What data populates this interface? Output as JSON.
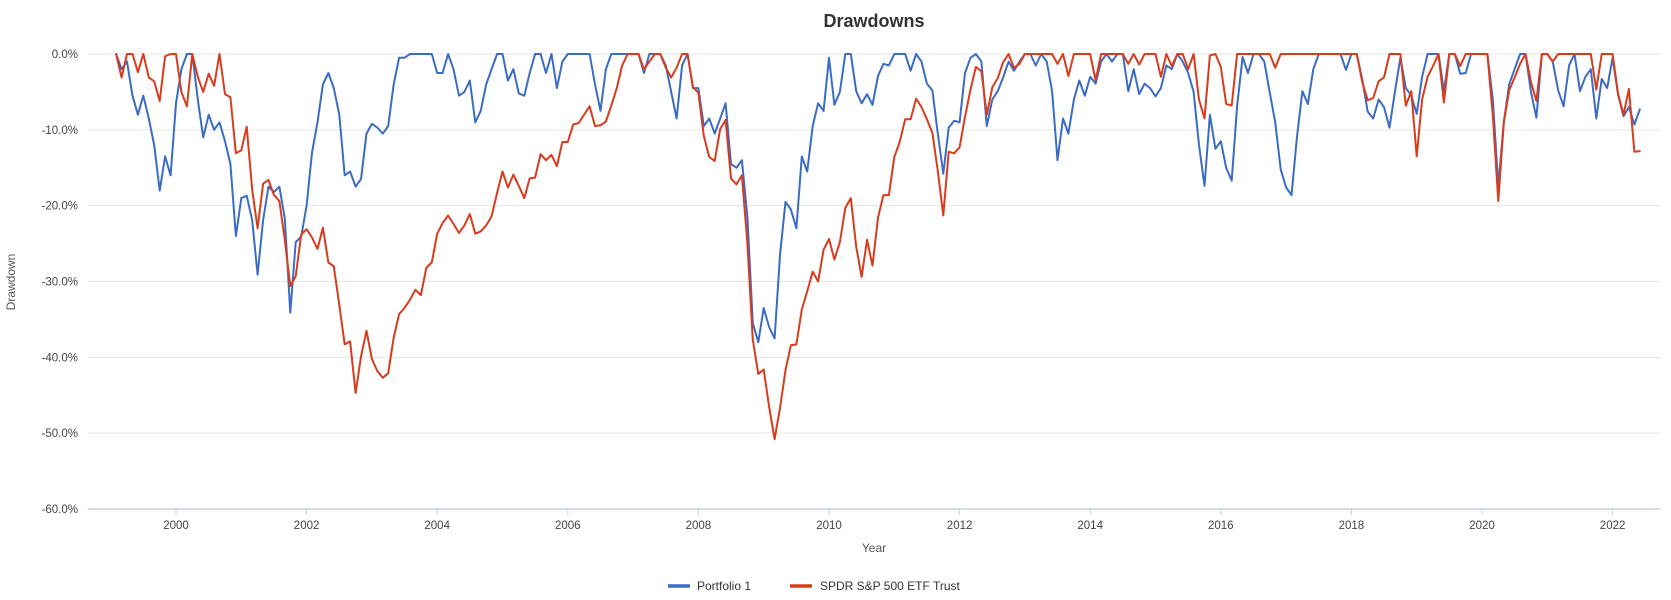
{
  "title": "Drawdowns",
  "y_axis": {
    "label": "Drawdown",
    "tick_labels": [
      "0.0%",
      "-10.0%",
      "-20.0%",
      "-30.0%",
      "-40.0%",
      "-50.0%",
      "-60.0%"
    ]
  },
  "x_axis": {
    "label": "Year",
    "tick_labels": [
      "2000",
      "2002",
      "2004",
      "2006",
      "2008",
      "2010",
      "2012",
      "2014",
      "2016",
      "2018",
      "2020",
      "2022"
    ]
  },
  "legend": [
    {
      "label": "Portfolio 1",
      "color": "#3b6cc4"
    },
    {
      "label": "SPDR S&P 500 ETF Trust",
      "color": "#d93b1d"
    }
  ],
  "colors": {
    "gridline": "#e6e6e6",
    "axis_line": "#c7d2e0",
    "background": "#ffffff"
  },
  "chart_data": {
    "type": "line",
    "title": "Drawdowns",
    "xlabel": "Year",
    "ylabel": "Drawdown",
    "ylim": [
      -60,
      0
    ],
    "grid": "horizontal",
    "legend_position": "bottom",
    "frequency": "monthly",
    "start_year": 1999,
    "start_month": 1,
    "xticks": [
      2000,
      2002,
      2004,
      2006,
      2008,
      2010,
      2012,
      2014,
      2016,
      2018,
      2020,
      2022
    ],
    "yticks_percent": [
      0,
      -10,
      -20,
      -30,
      -40,
      -50,
      -60
    ],
    "series": [
      {
        "name": "Portfolio 1",
        "color": "#3b6cc4",
        "values": [
          0,
          -2,
          -1,
          -5.5,
          -8,
          -5.5,
          -8.5,
          -12,
          -18,
          -13.5,
          -16,
          -6.5,
          -2,
          0,
          0,
          -6,
          -11,
          -8,
          -10,
          -9,
          -11.5,
          -14.5,
          -24,
          -19,
          -18.7,
          -21.9,
          -29.1,
          -21.9,
          -17.5,
          -18.2,
          -17.5,
          -21.7,
          -34.1,
          -24.8,
          -24.1,
          -20,
          -13,
          -9,
          -4,
          -2.5,
          -4.5,
          -8,
          -16,
          -15.5,
          -17.5,
          -16.5,
          -10.5,
          -9.2,
          -9.7,
          -10.5,
          -9.5,
          -4,
          -0.5,
          -0.5,
          0,
          0,
          0,
          0,
          0,
          -2.5,
          -2.5,
          0,
          -2,
          -5.5,
          -5,
          -3.5,
          -9,
          -7.5,
          -4,
          -2,
          0,
          0,
          -3.5,
          -2,
          -5.2,
          -5.5,
          -2.5,
          0,
          0,
          -2.5,
          0,
          -4.5,
          -1,
          0,
          0,
          0,
          0,
          0,
          -4,
          -7.5,
          -2,
          0,
          0,
          0,
          0,
          0,
          0,
          -2.5,
          0,
          0,
          0,
          -1.5,
          -5,
          -8.5,
          -1.5,
          0,
          -4.5,
          -4.5,
          -9.5,
          -8.5,
          -10.5,
          -8.5,
          -6.5,
          -14.5,
          -15,
          -14,
          -21.5,
          -35.5,
          -38,
          -33.5,
          -36,
          -37.5,
          -26.5,
          -19.5,
          -20.5,
          -23,
          -13.5,
          -15.5,
          -9.5,
          -6.5,
          -7.5,
          -0.5,
          -6.7,
          -5,
          0,
          0,
          -4.9,
          -6.5,
          -5.3,
          -6.7,
          -2.9,
          -1.3,
          -1.5,
          0,
          0,
          0,
          -2.2,
          0,
          -1,
          -3.9,
          -4.8,
          -10.5,
          -15.8,
          -9.7,
          -8.8,
          -9,
          -2.5,
          -0.5,
          0,
          -1,
          -9.5,
          -6,
          -4.9,
          -3.1,
          -1,
          -2.2,
          -1,
          0,
          0,
          -1.5,
          0,
          -1,
          -4.9,
          -14,
          -8.5,
          -10.5,
          -6,
          -3.5,
          -5.5,
          -3,
          -3.9,
          -1,
          0,
          -1,
          0,
          0,
          -4.9,
          -2,
          -5.3,
          -3.9,
          -4.5,
          -5.6,
          -4.5,
          -1.5,
          -2,
          0,
          -1,
          -2.5,
          -5,
          -12,
          -17.4,
          -8,
          -12.5,
          -11.5,
          -15,
          -16.7,
          -6.9,
          -0.4,
          -2.5,
          0,
          0,
          -1,
          -5.1,
          -9,
          -15.2,
          -17.6,
          -18.6,
          -10.9,
          -4.9,
          -6.6,
          -2,
          0,
          0,
          0,
          0,
          0,
          -2.1,
          0,
          0,
          -3.4,
          -7.6,
          -8.5,
          -6,
          -7,
          -9.7,
          -5,
          -0.5,
          -4.5,
          -5.5,
          -7.9,
          -3,
          0,
          0,
          0,
          -4.9,
          0,
          0,
          -2.6,
          -2.5,
          0,
          0,
          0,
          0,
          -6.1,
          -17.4,
          -9,
          -4,
          -2,
          0,
          0,
          -5,
          -8.4,
          0,
          0,
          -1,
          -4.8,
          -6.9,
          -1.5,
          0,
          -4.9,
          -3,
          -2,
          -8.5,
          -3.3,
          -4.5,
          -0.5,
          -5.3,
          -8.2,
          -7,
          -9.3,
          -7.3
        ]
      },
      {
        "name": "SPDR S&P 500 ETF Trust",
        "color": "#d93b1d",
        "values": [
          0,
          -3.1,
          0,
          0,
          -2.4,
          0,
          -3.1,
          -3.6,
          -6.2,
          -0.3,
          0,
          0,
          -5,
          -6.9,
          0,
          -3,
          -5,
          -2.6,
          -4.2,
          0,
          -5.3,
          -5.7,
          -13.1,
          -12.7,
          -9.6,
          -17.9,
          -23,
          -17.1,
          -16.6,
          -18.6,
          -19.4,
          -24.5,
          -30.6,
          -29.3,
          -23.8,
          -23.1,
          -24.2,
          -25.7,
          -22.9,
          -27.5,
          -28,
          -33.1,
          -38.3,
          -37.9,
          -44.7,
          -39.9,
          -36.5,
          -40.2,
          -41.8,
          -42.7,
          -42.1,
          -37.4,
          -34.3,
          -33.5,
          -32.4,
          -31.1,
          -31.8,
          -28.2,
          -27.5,
          -23.7,
          -22.3,
          -21.3,
          -22.4,
          -23.6,
          -22.6,
          -21.1,
          -23.7,
          -23.4,
          -22.6,
          -21.4,
          -18.3,
          -15.5,
          -17.6,
          -15.9,
          -17.4,
          -19,
          -16.4,
          -16.3,
          -13.2,
          -14,
          -13.3,
          -14.8,
          -11.6,
          -11.6,
          -9.3,
          -9.1,
          -8,
          -6.9,
          -9.5,
          -9.4,
          -8.9,
          -6.8,
          -4.5,
          -1.5,
          0,
          0,
          0,
          -2,
          -1,
          0,
          0,
          -1.8,
          -3.1,
          -1.8,
          0,
          0,
          -4.4,
          -5.1,
          -10.8,
          -13.6,
          -14.1,
          -9.9,
          -8.7,
          -16.4,
          -17.2,
          -16,
          -25,
          -37.7,
          -42.2,
          -41.6,
          -46.5,
          -50.8,
          -46.7,
          -41.7,
          -38.4,
          -38.3,
          -33.7,
          -31.3,
          -28.7,
          -30,
          -25.8,
          -24.4,
          -27.1,
          -24.8,
          -20.3,
          -19,
          -25.4,
          -29.4,
          -24.5,
          -27.9,
          -21.6,
          -18.6,
          -18.6,
          -13.6,
          -11.6,
          -8.6,
          -8.6,
          -5.9,
          -7,
          -8.6,
          -10.4,
          -15.4,
          -21.3,
          -12.9,
          -13.1,
          -12.3,
          -8.3,
          -4.7,
          -1.7,
          -2.3,
          -8,
          -4.4,
          -3.2,
          -1.1,
          0,
          -1.8,
          -1.3,
          0,
          0,
          0,
          0,
          0,
          0,
          -1.3,
          0,
          -2.9,
          0,
          0,
          0,
          0,
          -3.5,
          0,
          0,
          0,
          0,
          0,
          -1.3,
          0,
          -1.4,
          0,
          0,
          0,
          -3,
          0,
          -1.6,
          0,
          0,
          -2,
          0,
          -6,
          -8.5,
          -0.2,
          0,
          -1.7,
          -6.6,
          -6.8,
          0,
          0,
          0,
          0,
          0,
          0,
          0,
          -1.8,
          0,
          0,
          0,
          0,
          0,
          0,
          0,
          0,
          0,
          0,
          0,
          0,
          0,
          0,
          0,
          -3.7,
          -6.1,
          -5.8,
          -3.6,
          -3.1,
          0,
          0,
          0,
          -6.8,
          -4.9,
          -13.5,
          -6,
          -3,
          -1.6,
          0,
          -6.4,
          0,
          0,
          -1.6,
          0,
          0,
          0,
          0,
          0,
          -8.2,
          -19.4,
          -9,
          -4.8,
          -3.1,
          -1.3,
          0,
          -3.7,
          -6.2,
          0,
          0,
          -1,
          0,
          0,
          0,
          0,
          0,
          0,
          0,
          -4.7,
          0,
          0,
          0,
          -5.2,
          -8,
          -4.6,
          -12.9,
          -12.8
        ]
      }
    ]
  }
}
